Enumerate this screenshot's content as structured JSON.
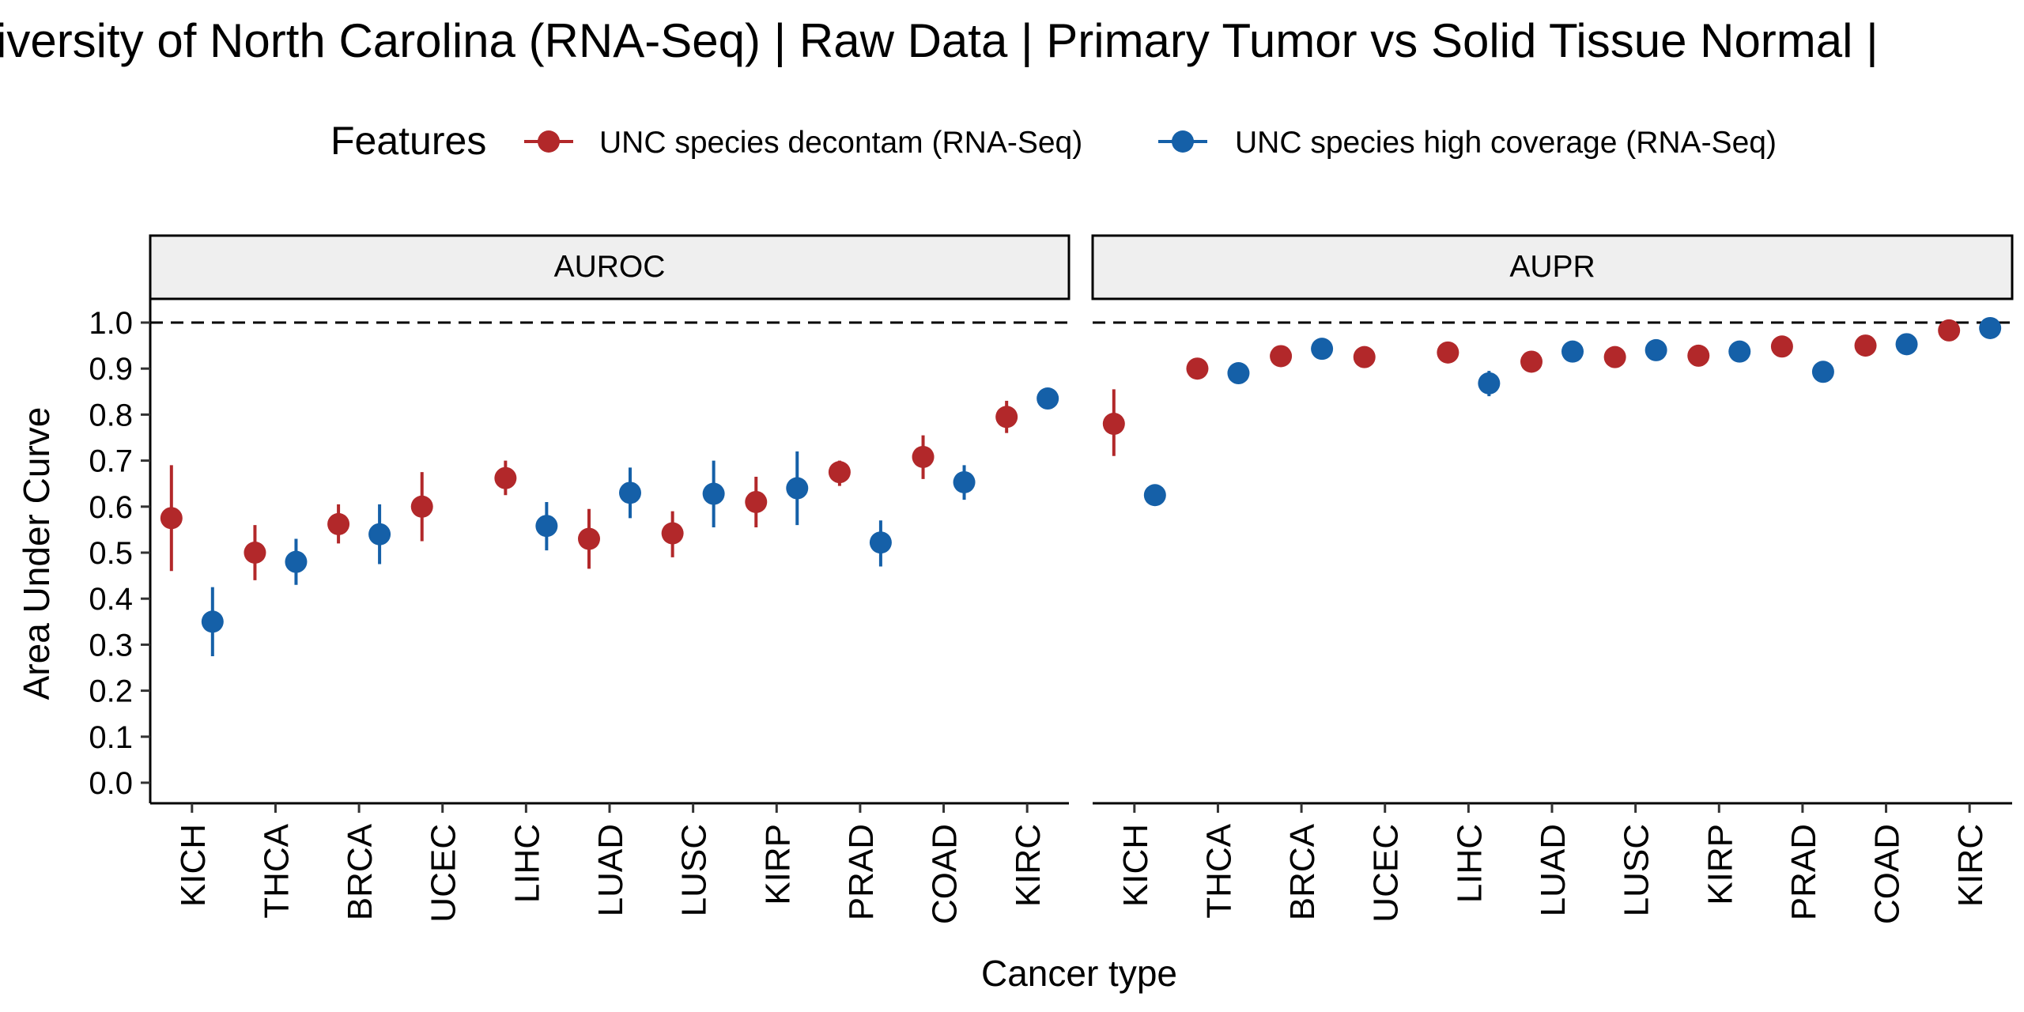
{
  "chart_data": {
    "type": "scatter",
    "title": "iversity of North Carolina (RNA-Seq) | Raw Data | Primary Tumor vs Solid Tissue Normal |",
    "xlabel": "Cancer type",
    "ylabel": "Area Under Curve",
    "ylim": [
      0.0,
      1.0
    ],
    "yticks": [
      "0.0",
      "0.1",
      "0.2",
      "0.3",
      "0.4",
      "0.5",
      "0.6",
      "0.7",
      "0.8",
      "0.9",
      "1.0"
    ],
    "reference_line": 1.0,
    "legend": {
      "title": "Features",
      "position": "top"
    },
    "categories": [
      "KICH",
      "THCA",
      "BRCA",
      "UCEC",
      "LIHC",
      "LUAD",
      "LUSC",
      "KIRP",
      "PRAD",
      "COAD",
      "KIRC"
    ],
    "colors": {
      "UNC species decontam (RNA-Seq)": "#b2282a",
      "UNC species high coverage (RNA-Seq)": "#1560a8"
    },
    "panels": [
      {
        "name": "AUROC",
        "series": [
          {
            "name": "UNC species decontam (RNA-Seq)",
            "values": [
              0.575,
              0.5,
              0.562,
              0.6,
              0.662,
              0.53,
              0.542,
              0.61,
              0.675,
              0.708,
              0.795
            ],
            "lower": [
              0.46,
              0.44,
              0.52,
              0.525,
              0.625,
              0.465,
              0.49,
              0.555,
              0.645,
              0.66,
              0.76
            ],
            "upper": [
              0.69,
              0.56,
              0.605,
              0.675,
              0.7,
              0.595,
              0.59,
              0.665,
              0.7,
              0.755,
              0.83
            ]
          },
          {
            "name": "UNC species high coverage (RNA-Seq)",
            "values": [
              0.35,
              0.48,
              0.54,
              null,
              0.558,
              0.63,
              0.628,
              0.64,
              0.522,
              0.653,
              0.835
            ],
            "lower": [
              0.275,
              0.43,
              0.475,
              null,
              0.505,
              0.575,
              0.555,
              0.56,
              0.47,
              0.615,
              0.815
            ],
            "upper": [
              0.425,
              0.53,
              0.605,
              null,
              0.61,
              0.685,
              0.7,
              0.72,
              0.57,
              0.69,
              0.855
            ]
          }
        ]
      },
      {
        "name": "AUPR",
        "series": [
          {
            "name": "UNC species decontam (RNA-Seq)",
            "values": [
              0.78,
              0.9,
              0.927,
              0.925,
              0.935,
              0.915,
              0.925,
              0.928,
              0.948,
              0.95,
              0.983
            ],
            "lower": [
              0.71,
              0.89,
              0.915,
              0.915,
              0.925,
              0.905,
              0.915,
              0.918,
              0.94,
              0.94,
              0.975
            ],
            "upper": [
              0.855,
              0.91,
              0.94,
              0.935,
              0.945,
              0.925,
              0.935,
              0.938,
              0.957,
              0.96,
              0.99
            ]
          },
          {
            "name": "UNC species high coverage (RNA-Seq)",
            "values": [
              0.625,
              0.89,
              0.943,
              null,
              0.868,
              0.937,
              0.94,
              0.937,
              0.893,
              0.953,
              0.988
            ],
            "lower": [
              0.605,
              0.88,
              0.935,
              null,
              0.84,
              0.928,
              0.93,
              0.928,
              0.885,
              0.945,
              0.98
            ],
            "upper": [
              0.645,
              0.9,
              0.952,
              null,
              0.895,
              0.946,
              0.95,
              0.946,
              0.902,
              0.962,
              0.995
            ]
          }
        ]
      }
    ]
  }
}
